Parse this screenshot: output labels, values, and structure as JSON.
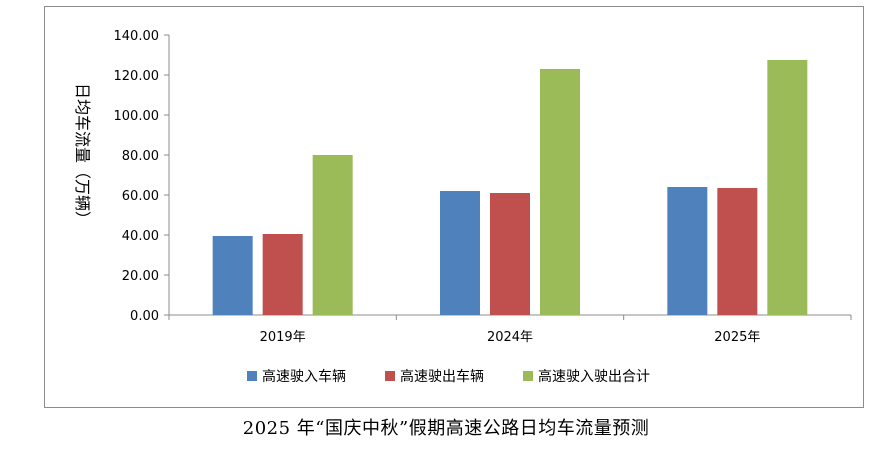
{
  "caption": "2025 年“国庆中秋”假期高速公路日均车流量预测",
  "chart_data": {
    "type": "bar",
    "title": "",
    "categories": [
      "2019年",
      "2024年",
      "2025年"
    ],
    "series": [
      {
        "name": "高速驶入车辆",
        "color": "#4F81BD",
        "values": [
          39.5,
          62.0,
          64.0
        ]
      },
      {
        "name": "高速驶出车辆",
        "color": "#C0504D",
        "values": [
          40.5,
          61.0,
          63.5
        ]
      },
      {
        "name": "高速驶入驶出合计",
        "color": "#9BBB59",
        "values": [
          80.0,
          123.0,
          127.5
        ]
      }
    ],
    "ylabel": "日均车流量（万辆）",
    "ylim": [
      0,
      140
    ],
    "yticks": [
      "0.00",
      "20.00",
      "40.00",
      "60.00",
      "80.00",
      "100.00",
      "120.00",
      "140.00"
    ],
    "grid": false,
    "legend": "bottom"
  }
}
